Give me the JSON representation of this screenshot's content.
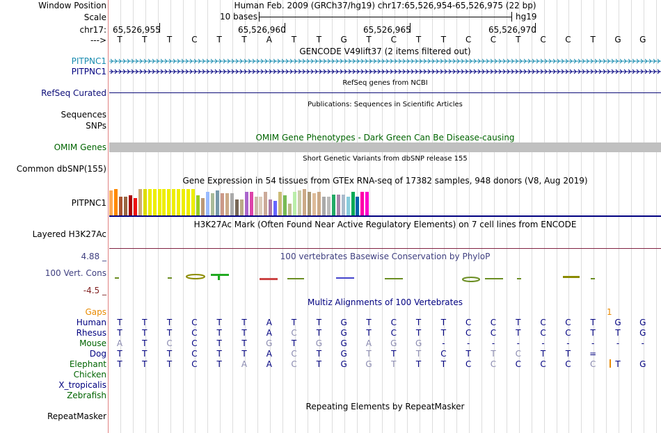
{
  "bases": [
    "T",
    "T",
    "T",
    "C",
    "T",
    "T",
    "A",
    "T",
    "T",
    "G",
    "T",
    "C",
    "T",
    "T",
    "C",
    "C",
    "T",
    "C",
    "C",
    "T",
    "G",
    "G"
  ],
  "header": {
    "window_position_label": "Window Position",
    "window_title": "Human Feb. 2009 (GRCh37/hg19)   chr17:65,526,954-65,526,975 (22 bp)",
    "scale_label": "Scale",
    "scale_text": "10 bases",
    "assembly": "hg19",
    "chrom_label": "chr17:",
    "positions": [
      "65,526,955",
      "65,526,960",
      "65,526,965",
      "65,526,970"
    ],
    "strand_label": "--->"
  },
  "tracks": {
    "gencode": {
      "title": "GENCODE V49lift37 (2 items filtered out)",
      "items": [
        {
          "name": "PITPNC1",
          "color": "#1a8cb0"
        },
        {
          "name": "PITPNC1",
          "color": "#000080"
        }
      ]
    },
    "refseq": {
      "label": "RefSeq Curated",
      "title": "RefSeq genes from NCBI",
      "color": "#0c0c78"
    },
    "publications": {
      "title": "Publications: Sequences in Scientific Articles",
      "labels": [
        "Sequences",
        "SNPs"
      ]
    },
    "omim": {
      "label": "OMIM Genes",
      "title": "OMIM Gene Phenotypes - Dark Green Can Be Disease-causing",
      "color": "#006400",
      "bar_color": "#c0c0c0"
    },
    "dbsnp": {
      "label": "Common dbSNP(155)",
      "title": "Short Genetic Variants from dbSNP release 155"
    },
    "gtex": {
      "title": "Gene Expression in 54 tissues from GTEx RNA-seq of 17382 samples, 948 donors (V8, Aug 2019)",
      "label": "PITPNC1",
      "values": [
        0.95,
        1.0,
        0.7,
        0.7,
        0.75,
        0.65,
        1.0,
        1.0,
        1.0,
        1.0,
        1.0,
        1.0,
        1.0,
        1.0,
        1.0,
        1.0,
        1.0,
        1.0,
        0.75,
        0.65,
        0.9,
        0.85,
        0.95,
        0.85,
        0.85,
        0.85,
        0.6,
        0.6,
        0.9,
        0.9,
        0.7,
        0.7,
        0.9,
        0.6,
        0.55,
        0.9,
        0.75,
        0.45,
        0.9,
        0.95,
        1.0,
        0.9,
        0.85,
        0.9,
        0.7,
        0.7,
        0.8,
        0.8,
        0.8,
        0.7,
        0.9,
        0.7,
        0.9,
        0.9
      ],
      "colors": [
        "#ffaa55",
        "#ff8800",
        "#aa5533",
        "#996644",
        "#aa0000",
        "#ee1111",
        "#ccaa77",
        "#dddd00",
        "#eeee00",
        "#eeee00",
        "#eeee00",
        "#eeee00",
        "#eeee00",
        "#eeee00",
        "#eeee00",
        "#eeee00",
        "#eeee00",
        "#eeee00",
        "#99cc22",
        "#bb9977",
        "#99bbff",
        "#aabb99",
        "#7799aa",
        "#cc9988",
        "#ccaa88",
        "#aaaaaa",
        "#776655",
        "#bbaa88",
        "#aa66cc",
        "#dd44aa",
        "#ccbbaa",
        "#ddccbb",
        "#ccaa99",
        "#aa77aa",
        "#6666ff",
        "#ccbb77",
        "#77bb55",
        "#bbbb88",
        "#bbeeaa",
        "#ccccaa",
        "#ccaa88",
        "#aa9977",
        "#ddbb99",
        "#ccaa88",
        "#aaaaaa",
        "#bbbbbb",
        "#22aa66",
        "#aa88aa",
        "#aabbcc",
        "#88ccdd",
        "#00aa55",
        "#0066aa",
        "#ff00aa",
        "#ff00cc"
      ]
    },
    "h3k27ac": {
      "label": "Layered H3K27Ac",
      "title": "H3K27Ac Mark (Often Found Near Active Regulatory Elements) on 7 cell lines from ENCODE"
    },
    "phylop": {
      "title": "100 vertebrates Basewise Conservation by PhyloP",
      "label": "100 Vert. Cons",
      "ymax": "4.88 _",
      "ymin": "-4.5 _",
      "color": "#404080"
    },
    "multiz": {
      "title": "Multiz Alignments of 100 Vertebrates",
      "gaps_label": "Gaps",
      "gap_marker": "1",
      "species": [
        {
          "name": "Human",
          "color": "#000080",
          "seq": [
            "T",
            "T",
            "T",
            "C",
            "T",
            "T",
            "A",
            "T",
            "T",
            "G",
            "T",
            "C",
            "T",
            "T",
            "C",
            "C",
            "T",
            "C",
            "C",
            "T",
            "G",
            "G"
          ],
          "light": []
        },
        {
          "name": "Rhesus",
          "color": "#000080",
          "seq": [
            "T",
            "T",
            "T",
            "C",
            "T",
            "T",
            "A",
            "C",
            "T",
            "G",
            "T",
            "C",
            "T",
            "T",
            "C",
            "C",
            "T",
            "C",
            "C",
            "T",
            "T",
            "G"
          ],
          "light": [
            7
          ]
        },
        {
          "name": "Mouse",
          "color": "#006400",
          "seq": [
            "A",
            "T",
            "C",
            "C",
            "T",
            "T",
            "G",
            "T",
            "G",
            "G",
            "A",
            "G",
            "G",
            "-",
            "-",
            "-",
            "-",
            "-",
            "-",
            "-",
            "-",
            "-"
          ],
          "light": [
            0,
            2,
            6,
            8,
            10,
            11,
            12
          ]
        },
        {
          "name": "Dog",
          "color": "#000080",
          "seq": [
            "T",
            "T",
            "T",
            "C",
            "T",
            "T",
            "A",
            "C",
            "T",
            "G",
            "T",
            "T",
            "T",
            "C",
            "T",
            "T",
            "C",
            "T",
            "T",
            "=",
            "",
            ""
          ],
          "light": [
            7,
            10,
            12,
            15,
            16
          ]
        },
        {
          "name": "Elephant",
          "color": "#006400",
          "seq": [
            "T",
            "T",
            "T",
            "C",
            "T",
            "A",
            "A",
            "C",
            "T",
            "G",
            "G",
            "T",
            "T",
            "T",
            "C",
            "C",
            "C",
            "C",
            "C",
            "C",
            "T",
            "G"
          ],
          "light": [
            5,
            7,
            10,
            11,
            15,
            19
          ]
        },
        {
          "name": "Chicken",
          "color": "#006400",
          "seq": [],
          "light": []
        },
        {
          "name": "X_tropicalis",
          "color": "#000080",
          "seq": [],
          "light": []
        },
        {
          "name": "Zebrafish",
          "color": "#006400",
          "seq": [],
          "light": []
        }
      ]
    },
    "repeatmasker": {
      "label": "RepeatMasker",
      "title": "Repeating Elements by RepeatMasker"
    }
  }
}
